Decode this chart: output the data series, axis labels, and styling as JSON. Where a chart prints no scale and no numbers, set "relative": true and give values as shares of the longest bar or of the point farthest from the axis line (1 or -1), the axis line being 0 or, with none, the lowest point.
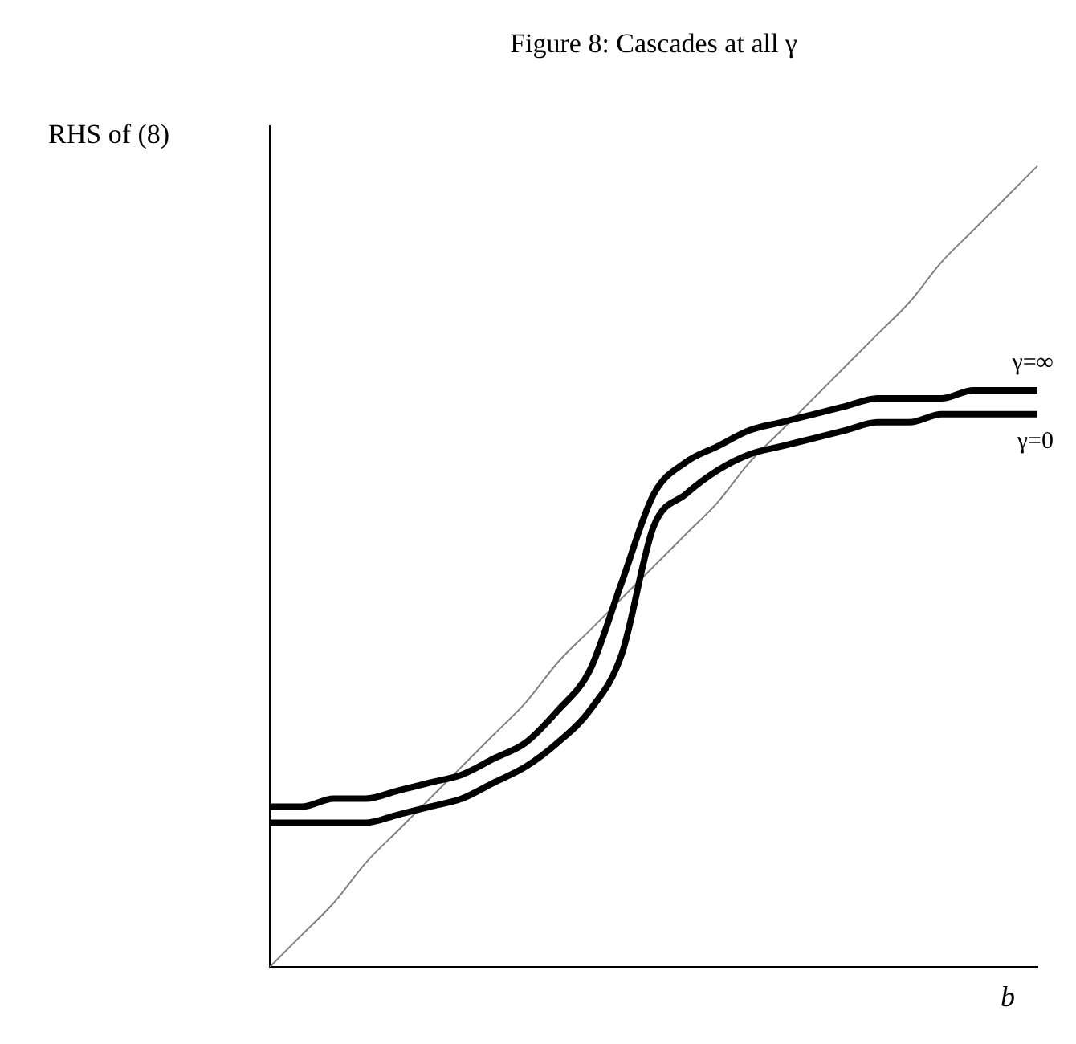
{
  "chart_data": {
    "type": "line",
    "title": "Figure 8: Cascades at all γ",
    "ylabel": "RHS of (8)",
    "xlabel": "b",
    "relative": true,
    "grid": false,
    "legend": false,
    "marker": "none",
    "line_style": "solid",
    "categories": [
      null,
      null,
      null,
      null,
      null,
      null,
      null,
      null,
      null,
      null,
      null,
      null,
      null,
      null,
      null,
      null,
      null,
      null,
      null,
      null,
      null,
      null,
      null,
      null,
      null
    ],
    "series": [
      {
        "name": "γ=∞",
        "color": "#000000",
        "values": [
          0.2,
          0.2,
          0.21,
          0.21,
          0.22,
          0.23,
          0.24,
          0.26,
          0.28,
          0.32,
          0.37,
          0.48,
          0.59,
          0.63,
          0.65,
          0.67,
          0.68,
          0.69,
          0.7,
          0.71,
          0.71,
          0.71,
          0.72,
          0.72,
          0.72
        ]
      },
      {
        "name": "γ=0",
        "color": "#000000",
        "values": [
          0.18,
          0.18,
          0.18,
          0.18,
          0.19,
          0.2,
          0.21,
          0.23,
          0.25,
          0.28,
          0.32,
          0.39,
          0.55,
          0.59,
          0.62,
          0.64,
          0.65,
          0.66,
          0.67,
          0.68,
          0.68,
          0.69,
          0.69,
          0.69,
          0.69
        ]
      },
      {
        "color": "#808080",
        "values": [
          0,
          0.04,
          0.08,
          0.13,
          0.17,
          0.21,
          0.25,
          0.29,
          0.33,
          0.38,
          0.42,
          0.46,
          0.5,
          0.54,
          0.58,
          0.63,
          0.67,
          0.71,
          0.75,
          0.79,
          0.83,
          0.88,
          0.92,
          0.96,
          1
        ]
      }
    ]
  }
}
